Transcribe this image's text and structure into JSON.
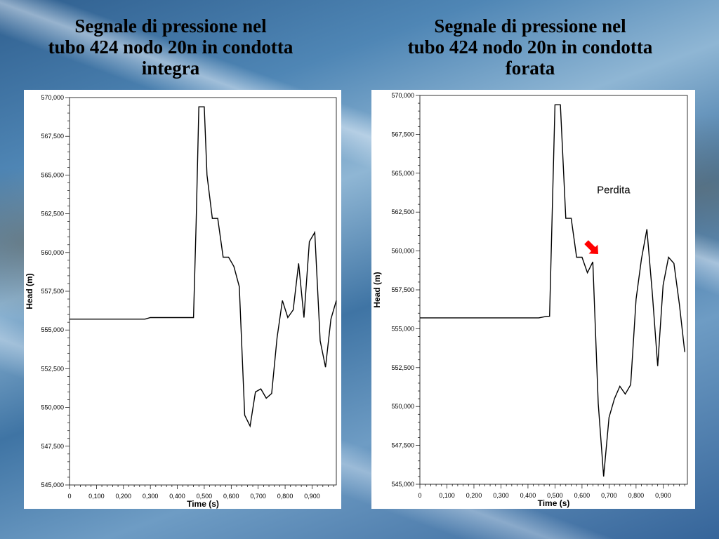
{
  "slide": {
    "left_title_lines": [
      "Segnale di pressione nel",
      "tubo 424 nodo 20n in condotta",
      "integra"
    ],
    "right_title_lines": [
      "Segnale di pressione nel",
      "tubo 424 nodo 20n in condotta",
      "forata"
    ]
  },
  "chart_data": [
    {
      "type": "line",
      "title": "",
      "xlabel": "Time (s)",
      "ylabel": "Head (m)",
      "xlim": [
        0,
        0.99
      ],
      "ylim": [
        545,
        570
      ],
      "xticks": [
        "0",
        "0,100",
        "0,200",
        "0,300",
        "0,400",
        "0,500",
        "0,600",
        "0,700",
        "0,800",
        "0,900"
      ],
      "yticks": [
        "545,000",
        "547,500",
        "550,000",
        "552,500",
        "555,000",
        "557,500",
        "560,000",
        "562,500",
        "565,000",
        "567,500",
        "570,000"
      ],
      "grid": false,
      "line_color": "#000000",
      "x": [
        0,
        0.28,
        0.3,
        0.46,
        0.47,
        0.48,
        0.5,
        0.51,
        0.53,
        0.55,
        0.57,
        0.59,
        0.61,
        0.63,
        0.65,
        0.67,
        0.69,
        0.71,
        0.73,
        0.75,
        0.77,
        0.79,
        0.81,
        0.83,
        0.85,
        0.87,
        0.89,
        0.91,
        0.93,
        0.95,
        0.97,
        0.99
      ],
      "y": [
        555.7,
        555.7,
        555.8,
        555.8,
        562.0,
        569.4,
        569.4,
        565.0,
        562.2,
        562.2,
        559.7,
        559.7,
        559.1,
        557.8,
        549.5,
        548.8,
        551.0,
        551.2,
        550.6,
        550.9,
        554.5,
        556.9,
        555.8,
        556.3,
        559.3,
        555.8,
        560.7,
        561.3,
        554.3,
        552.6,
        555.7,
        556.9
      ]
    },
    {
      "type": "line",
      "title": "",
      "xlabel": "Time (s)",
      "ylabel": "Head (m)",
      "xlim": [
        0,
        0.99
      ],
      "ylim": [
        545,
        570
      ],
      "xticks": [
        "0",
        "0,100",
        "0,200",
        "0,300",
        "0,400",
        "0,500",
        "0,600",
        "0,700",
        "0,800",
        "0,900"
      ],
      "yticks": [
        "545,000",
        "547,500",
        "550,000",
        "552,500",
        "555,000",
        "557,500",
        "560,000",
        "562,500",
        "565,000",
        "567,500",
        "570,000"
      ],
      "grid": false,
      "line_color": "#000000",
      "annotation": {
        "text": "Perdita",
        "arrow_color": "#ff0000"
      },
      "x": [
        0,
        0.44,
        0.47,
        0.48,
        0.5,
        0.52,
        0.54,
        0.56,
        0.58,
        0.6,
        0.62,
        0.64,
        0.66,
        0.68,
        0.7,
        0.72,
        0.74,
        0.76,
        0.78,
        0.8,
        0.82,
        0.84,
        0.86,
        0.88,
        0.9,
        0.92,
        0.94,
        0.96,
        0.98
      ],
      "y": [
        555.7,
        555.7,
        555.8,
        555.8,
        569.4,
        569.4,
        562.1,
        562.1,
        559.6,
        559.6,
        558.6,
        559.3,
        550.2,
        545.5,
        549.3,
        550.5,
        551.3,
        550.8,
        551.4,
        556.9,
        559.5,
        561.4,
        557.3,
        552.6,
        557.8,
        559.6,
        559.2,
        556.6,
        553.5
      ]
    }
  ]
}
